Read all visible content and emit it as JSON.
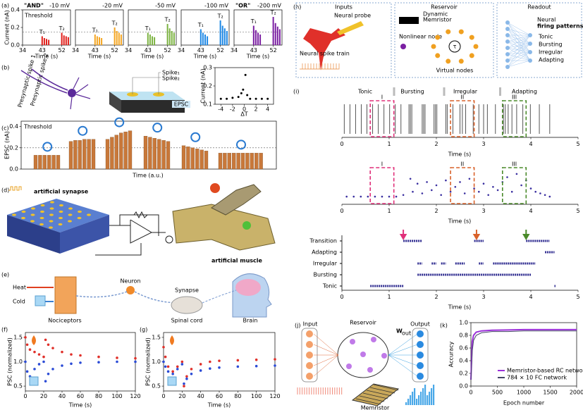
{
  "a": {
    "label": "(a)",
    "y_title": "Current (nA)",
    "threshold_label": "Threshold",
    "threshold": 0.15,
    "ylim": [
      0,
      0.4
    ],
    "yticks": [
      {
        "value": 0,
        "label": "0.0"
      },
      {
        "value": 0.2,
        "label": "0.2"
      },
      {
        "value": 0.4,
        "label": "0.4"
      }
    ],
    "panels": [
      {
        "logic": "\"AND\"",
        "voltage": "-10 mV",
        "color": "#e0201b",
        "x_title": "Time (s)",
        "xlim": [
          34,
          56
        ],
        "xticks": [
          34,
          43,
          52
        ],
        "pulse_labels": [
          "T₁",
          "T₂"
        ],
        "x": [
          43,
          44,
          45,
          46,
          52,
          53,
          54,
          55
        ],
        "values": [
          0.1,
          0.08,
          0.07,
          0.06,
          0.14,
          0.11,
          0.1,
          0.09
        ]
      },
      {
        "voltage": "-20 mV",
        "color": "#f5a623",
        "x_title": "Time (s)",
        "xlim": [
          34,
          56
        ],
        "xticks": [
          34,
          43,
          52
        ],
        "pulse_labels": [
          "T₁",
          "T₂"
        ],
        "x": [
          43,
          44,
          45,
          46,
          52,
          53,
          54,
          55
        ],
        "values": [
          0.12,
          0.1,
          0.09,
          0.08,
          0.2,
          0.16,
          0.14,
          0.12
        ]
      },
      {
        "voltage": "-50 mV",
        "color": "#7cb342",
        "x_title": "Time (s)",
        "xlim": [
          34,
          56
        ],
        "xticks": [
          34,
          43,
          52
        ],
        "pulse_labels": [
          "T₁",
          "T₂"
        ],
        "x": [
          43,
          44,
          45,
          46,
          52,
          53,
          54,
          55
        ],
        "values": [
          0.14,
          0.12,
          0.1,
          0.09,
          0.24,
          0.19,
          0.16,
          0.14
        ]
      },
      {
        "voltage": "-100 mV",
        "color": "#1e88e5",
        "x_title": "Time (s)",
        "xlim": [
          34,
          56
        ],
        "xticks": [
          34,
          43,
          52
        ],
        "pulse_labels": [
          "T₁",
          "T₂"
        ],
        "x": [
          43,
          44,
          45,
          46,
          52,
          53,
          54,
          55
        ],
        "values": [
          0.18,
          0.14,
          0.12,
          0.1,
          0.28,
          0.22,
          0.19,
          0.16
        ]
      },
      {
        "logic": "\"OR\"",
        "voltage": "-200 mV",
        "color": "#7b1fa2",
        "x_title": "Time (s)",
        "xlim": [
          34,
          56
        ],
        "xticks": [
          34,
          43,
          52
        ],
        "pulse_labels": [
          "T₁",
          "T₂"
        ],
        "x": [
          43,
          44,
          45,
          46,
          52,
          53,
          54,
          55
        ],
        "values": [
          0.22,
          0.17,
          0.14,
          0.12,
          0.32,
          0.25,
          0.21,
          0.18
        ]
      }
    ]
  },
  "b": {
    "label": "(b)",
    "presyn": [
      "Presynaptic spike 1",
      "Presynaptic spike 2"
    ],
    "spikes": [
      "Spike₁",
      "Spike₂"
    ],
    "epsc": "EPSC",
    "inset": {
      "x_title": "ΔT",
      "y_title": "Current (nA)",
      "xlim": [
        -5,
        5
      ],
      "xticks": [
        -4,
        -2,
        0,
        2,
        4
      ],
      "ylim": [
        0.1,
        0.3
      ],
      "yticks": [
        0.1,
        0.2,
        0.3
      ],
      "x": [
        -4,
        -3,
        -2,
        -1,
        -0.5,
        -0.2,
        0.2,
        0.5,
        1,
        2,
        3,
        4
      ],
      "values": [
        0.13,
        0.13,
        0.135,
        0.14,
        0.16,
        0.18,
        0.26,
        0.15,
        0.13,
        0.13,
        0.13,
        0.13
      ]
    }
  },
  "c": {
    "label": "(c)",
    "y_title": "EPSC (nA)",
    "x_title": "Time (a.u.)",
    "threshold_label": "Threshold",
    "threshold": 0.2,
    "color": "#c8783a",
    "ylim": [
      0,
      0.45
    ],
    "yticks": [
      {
        "value": 0,
        "label": "0.0"
      },
      {
        "value": 0.2,
        "label": "0.2"
      },
      {
        "value": 0.4,
        "label": "0.4"
      }
    ],
    "groups": [
      [
        0.13,
        0.13,
        0.13,
        0.13,
        0.13,
        0.13
      ],
      [
        0.26,
        0.27,
        0.27,
        0.28,
        0.28,
        0.28
      ],
      [
        0.28,
        0.3,
        0.32,
        0.34,
        0.35,
        0.36
      ],
      [
        0.31,
        0.3,
        0.29,
        0.28,
        0.27,
        0.26
      ],
      [
        0.22,
        0.21,
        0.2,
        0.19,
        0.18,
        0.17
      ],
      [
        0.15,
        0.15,
        0.15,
        0.15,
        0.15,
        0.15,
        0.15,
        0.15,
        0.15,
        0.15
      ]
    ]
  },
  "d": {
    "label": "(d)",
    "synapse": "artificial synapse",
    "muscle": "artificial muscle"
  },
  "e": {
    "label": "(e)",
    "heat": "Heat",
    "cold": "Cold",
    "nociceptors": "Nociceptors",
    "neuron": "Neuron",
    "synapse": "Synapse",
    "spinal_cord": "Spinal cord",
    "brain": "Brain"
  },
  "f": {
    "label": "(f)",
    "y_title": "PSC (normalized)",
    "x_title": "Time (s)",
    "xlim": [
      0,
      120
    ],
    "xticks": [
      0,
      20,
      40,
      60,
      80,
      100,
      120
    ],
    "ylim": [
      0.4,
      1.6
    ],
    "yticks": [
      {
        "value": 0.5,
        "label": "0.5"
      },
      {
        "value": 1,
        "label": "1.0"
      },
      {
        "value": 1.5,
        "label": "1.5"
      }
    ],
    "x": [
      0,
      2,
      5,
      10,
      15,
      20,
      22,
      25,
      30,
      40,
      50,
      60,
      80,
      100,
      120
    ],
    "series": [
      {
        "color": "#e0302a",
        "values": [
          1.5,
          1.35,
          1.25,
          1.2,
          1.15,
          1.1,
          1.45,
          1.35,
          1.28,
          1.2,
          1.15,
          1.13,
          1.1,
          1.08,
          1.07
        ]
      },
      {
        "color": "#2b4bd6",
        "values": [
          1.0,
          0.8,
          0.7,
          0.85,
          0.95,
          1.0,
          0.6,
          0.75,
          0.85,
          0.92,
          0.96,
          0.98,
          0.99,
          1.0,
          1.0
        ]
      }
    ]
  },
  "g": {
    "label": "(g)",
    "y_title": "PSC (normalized)",
    "x_title": "Time (s)",
    "xlim": [
      0,
      120
    ],
    "xticks": [
      0,
      20,
      40,
      60,
      80,
      100,
      120
    ],
    "ylim": [
      0.4,
      1.6
    ],
    "yticks": [
      {
        "value": 0.5,
        "label": "0.5"
      },
      {
        "value": 1,
        "label": "1.0"
      },
      {
        "value": 1.5,
        "label": "1.5"
      }
    ],
    "x": [
      0,
      2,
      5,
      10,
      15,
      20,
      22,
      25,
      30,
      40,
      50,
      60,
      80,
      100,
      120
    ],
    "series": [
      {
        "color": "#e0302a",
        "values": [
          1.3,
          1.1,
          0.9,
          0.8,
          0.9,
          1.0,
          0.5,
          0.7,
          0.85,
          0.95,
          1.0,
          1.02,
          1.03,
          1.04,
          1.05
        ]
      },
      {
        "color": "#2b4bd6",
        "values": [
          1.0,
          0.9,
          0.8,
          0.75,
          0.85,
          0.95,
          0.55,
          0.65,
          0.75,
          0.82,
          0.86,
          0.88,
          0.9,
          0.91,
          0.92
        ]
      }
    ]
  },
  "h": {
    "label": "(h)",
    "sections": [
      "Inputs",
      "Reservoir",
      "Readout"
    ],
    "probe": "Neural probe",
    "spike_train": "Neural spike train",
    "memristor": [
      "Dynamic",
      "Memristor"
    ],
    "nonlinear": "Nonlinear node",
    "tau": "τ",
    "virtual": "Virtual nodes",
    "readout_title": [
      "Neural",
      "firing patterns"
    ],
    "patterns": [
      {
        "name": "Tonic",
        "color": "#000000"
      },
      {
        "name": "Bursting",
        "color": "#e8883a"
      },
      {
        "name": "Irregular",
        "color": "#000000"
      },
      {
        "name": "Adapting",
        "color": "#000000"
      }
    ]
  },
  "i": {
    "label": "(i)",
    "legend": [
      "Tonic",
      "Bursting",
      "Irregular",
      "Adapting"
    ],
    "xlim": [
      0,
      5
    ],
    "xticks": [
      0,
      1,
      2,
      3,
      4,
      5
    ],
    "x_title": "Time (s)",
    "windows": [
      {
        "name": "I",
        "color": "#e0307a",
        "range": [
          0.6,
          1.1
        ]
      },
      {
        "name": "II",
        "color": "#d9622b",
        "range": [
          2.3,
          2.8
        ]
      },
      {
        "name": "III",
        "color": "#4a8a2a",
        "range": [
          3.4,
          3.9
        ]
      }
    ],
    "raster": {
      "color": "#555555",
      "spikes": [
        0.05,
        0.17,
        0.29,
        0.41,
        0.53,
        0.65,
        0.77,
        0.89,
        1.01,
        1.13,
        1.25,
        1.42,
        1.45,
        1.48,
        1.7,
        1.73,
        1.76,
        1.95,
        1.98,
        2.01,
        2.2,
        2.23,
        2.35,
        2.5,
        2.55,
        2.62,
        2.78,
        2.9,
        3.0,
        3.08,
        3.25,
        3.42,
        3.46,
        3.52,
        3.6,
        3.7,
        3.83,
        3.99,
        4.18,
        4.4
      ]
    },
    "scatter": {
      "color": "#3a2fa0",
      "ylim": [
        0,
        1
      ],
      "x": [
        0.1,
        0.25,
        0.4,
        0.55,
        0.7,
        0.85,
        1.0,
        1.15,
        1.3,
        1.45,
        1.5,
        1.6,
        1.7,
        1.8,
        1.9,
        2.0,
        2.1,
        2.2,
        2.3,
        2.4,
        2.5,
        2.6,
        2.7,
        2.8,
        2.9,
        3.0,
        3.1,
        3.2,
        3.3,
        3.4,
        3.5,
        3.6,
        3.7,
        3.8,
        3.9,
        4.0,
        4.1,
        4.2,
        4.3,
        4.4
      ],
      "y": [
        0.15,
        0.15,
        0.15,
        0.15,
        0.15,
        0.15,
        0.15,
        0.15,
        0.2,
        0.7,
        0.3,
        0.55,
        0.25,
        0.6,
        0.35,
        0.5,
        0.2,
        0.65,
        0.3,
        0.45,
        0.6,
        0.25,
        0.7,
        0.4,
        0.3,
        0.55,
        0.2,
        0.45,
        0.35,
        0.6,
        0.75,
        0.3,
        0.85,
        0.5,
        0.65,
        0.4,
        0.3,
        0.25,
        0.2,
        0.15
      ]
    },
    "states": {
      "color": "#2d2a8f",
      "categories": [
        "Tonic",
        "Bursting",
        "Irregular",
        "Adapting",
        "Transition"
      ],
      "segments": [
        [
          [
            0.6,
            1.3
          ],
          [
            4.5,
            4.52
          ]
        ],
        [
          [
            1.6,
            4.0
          ]
        ],
        [
          [
            1.6,
            1.7
          ],
          [
            1.9,
            2.0
          ],
          [
            2.1,
            2.2
          ],
          [
            2.4,
            2.6
          ],
          [
            2.9,
            3.0
          ],
          [
            3.2,
            4.1
          ]
        ],
        [
          [
            4.3,
            4.5
          ]
        ],
        [
          [
            1.3,
            1.7
          ],
          [
            2.8,
            3.0
          ],
          [
            3.9,
            4.4
          ]
        ]
      ],
      "arrows": [
        {
          "x": 1.3,
          "color": "#e0307a"
        },
        {
          "x": 2.85,
          "color": "#d9622b"
        },
        {
          "x": 3.9,
          "color": "#4a8a2a"
        }
      ]
    }
  },
  "j": {
    "label": "(j)",
    "input": "Input",
    "reservoir": "Reservoir",
    "output": "Output",
    "w": "W",
    "w_sub": "out",
    "memristor": "Memristor"
  },
  "k": {
    "label": "(k)",
    "y_title": "Accuracy",
    "x_title": "Epoch number",
    "legend": "lower right",
    "xlim": [
      0,
      2000
    ],
    "xticks": [
      0,
      500,
      1000,
      1500,
      2000
    ],
    "ylim": [
      0,
      1
    ],
    "yticks": [
      {
        "value": 0,
        "label": "0.0"
      },
      0.2,
      0.4,
      0.6,
      0.8,
      {
        "value": 1,
        "label": "1.0"
      }
    ],
    "x": [
      0,
      25,
      50,
      100,
      200,
      400,
      700,
      1000,
      1500,
      2000
    ],
    "series": [
      {
        "name": "Memristor-based RC network",
        "color": "#9b30d9",
        "values": [
          0.1,
          0.7,
          0.8,
          0.85,
          0.87,
          0.88,
          0.885,
          0.89,
          0.89,
          0.89
        ]
      },
      {
        "name": "784 × 10 FC network",
        "color": "#444466",
        "values": [
          0.1,
          0.55,
          0.72,
          0.8,
          0.84,
          0.86,
          0.86,
          0.87,
          0.87,
          0.87
        ]
      }
    ]
  }
}
